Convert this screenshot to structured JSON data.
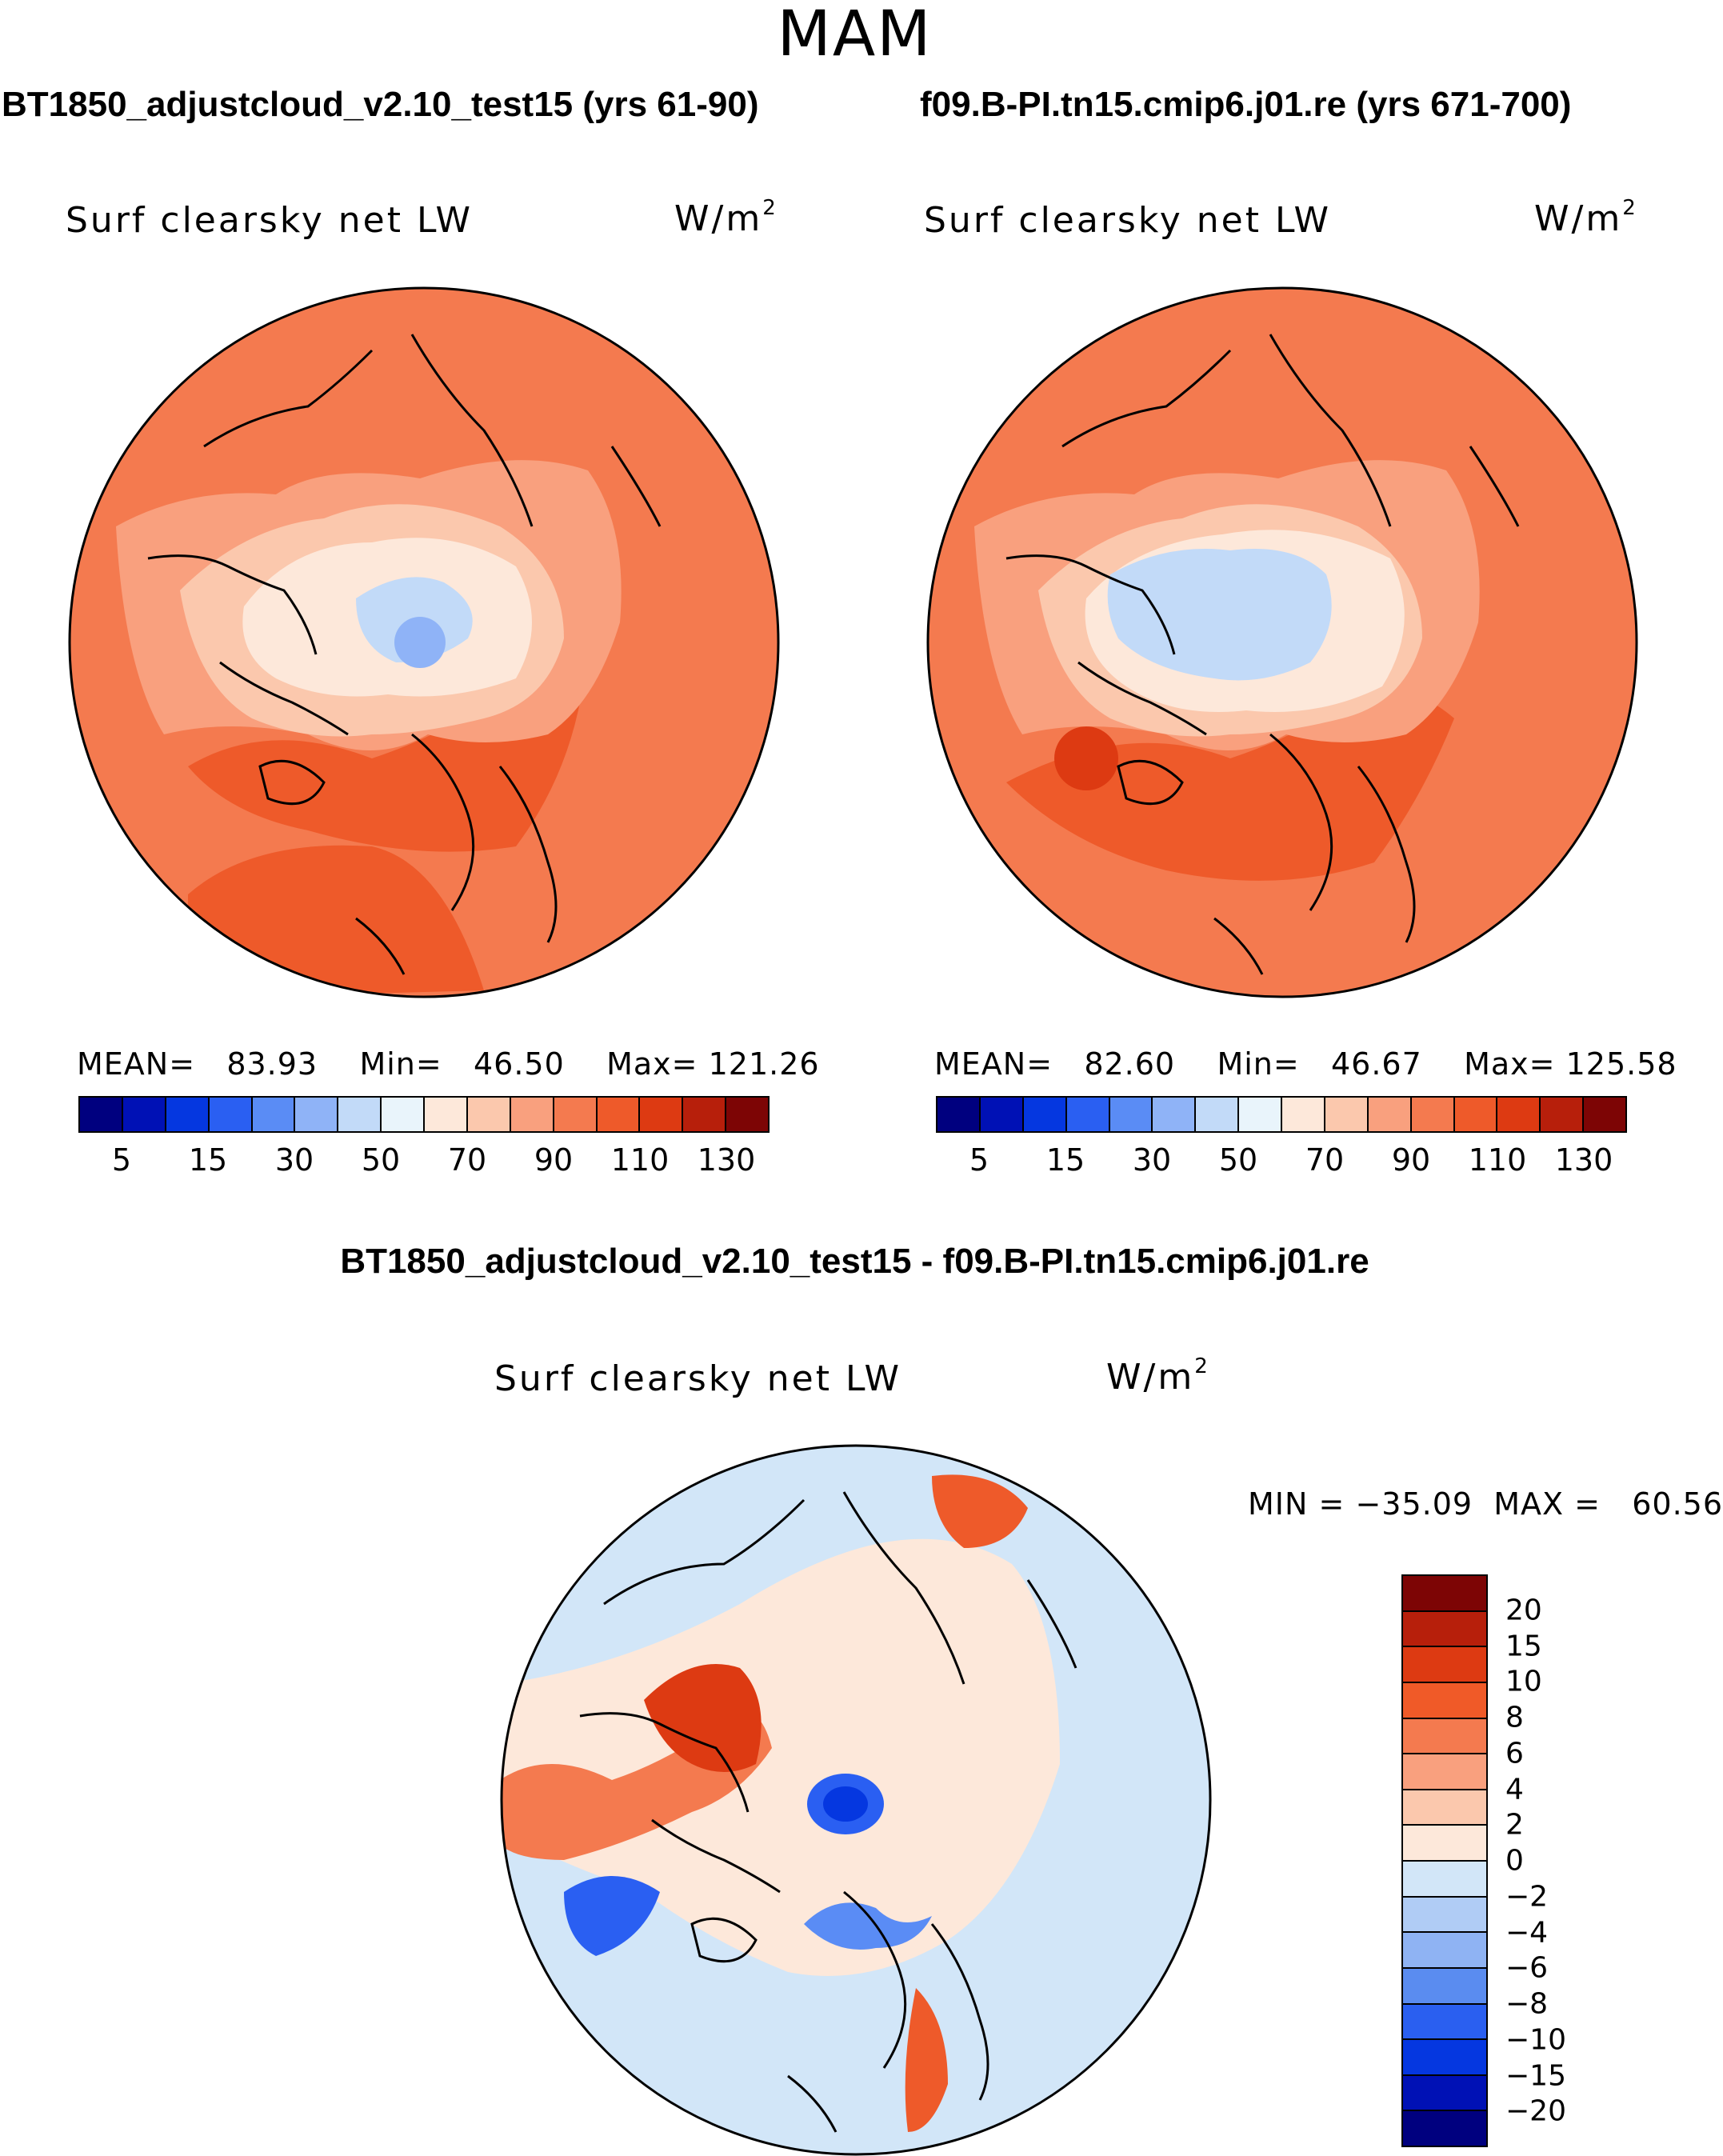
{
  "figure": {
    "season": "MAM",
    "left_title": "BT1850_adjustcloud_v2.10_test15 (yrs 61-90)",
    "right_title": "f09.B-PI.tn15.cmip6.j01.re (yrs 671-700)",
    "diff_title": "BT1850_adjustcloud_v2.10_test15 - f09.B-PI.tn15.cmip6.j01.re"
  },
  "panels": {
    "left": {
      "variable": "Surf clearsky net LW",
      "units": "W/m",
      "units_exp": "2",
      "mean_label": "MEAN=",
      "mean": "83.93",
      "min_label": "Min=",
      "min": "46.50",
      "max_label": "Max=",
      "max": "121.26"
    },
    "right": {
      "variable": "Surf clearsky net LW",
      "units": "W/m",
      "units_exp": "2",
      "mean_label": "MEAN=",
      "mean": "82.60",
      "min_label": "Min=",
      "min": "46.67",
      "max_label": "Max=",
      "max": "125.58"
    },
    "diff": {
      "variable": "Surf clearsky net LW",
      "units": "W/m",
      "units_exp": "2",
      "min_label": "MIN =",
      "min": "−35.09",
      "max_label": "MAX =",
      "max": "60.56"
    }
  },
  "colorbar_abs": {
    "colors": [
      "#00007f",
      "#0011b5",
      "#0537e0",
      "#2a5ff2",
      "#5a8cf5",
      "#8fb3f7",
      "#c2daf8",
      "#e9f4fb",
      "#fde8da",
      "#fbc8ad",
      "#f9a07e",
      "#f47a4f",
      "#ee5a2a",
      "#dd3a12",
      "#b71f0b",
      "#7d0505"
    ],
    "ticks": [
      "5",
      "15",
      "30",
      "50",
      "70",
      "90",
      "110",
      "130"
    ]
  },
  "colorbar_diff": {
    "colors": [
      "#7d0505",
      "#b71f0b",
      "#dd3a12",
      "#f05a28",
      "#f47a4f",
      "#f9a07e",
      "#fbc8ad",
      "#fde8da",
      "#d2e6f8",
      "#b0ccf5",
      "#8fb3f3",
      "#5a8cf0",
      "#2a5ff0",
      "#0537e0",
      "#0011b5",
      "#00007f"
    ],
    "ticks": [
      "20",
      "15",
      "10",
      "8",
      "6",
      "4",
      "2",
      "0",
      "−2",
      "−4",
      "−6",
      "−8",
      "−10",
      "−15",
      "−20"
    ]
  }
}
